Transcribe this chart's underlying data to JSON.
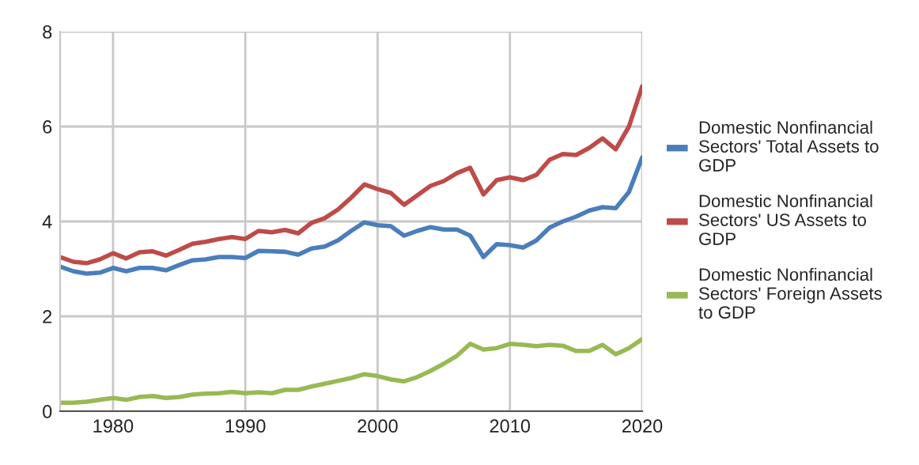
{
  "chart_data": {
    "type": "line",
    "x": [
      1976,
      1977,
      1978,
      1979,
      1980,
      1981,
      1982,
      1983,
      1984,
      1985,
      1986,
      1987,
      1988,
      1989,
      1990,
      1991,
      1992,
      1993,
      1994,
      1995,
      1996,
      1997,
      1998,
      1999,
      2000,
      2001,
      2002,
      2003,
      2004,
      2005,
      2006,
      2007,
      2008,
      2009,
      2010,
      2011,
      2012,
      2013,
      2014,
      2015,
      2016,
      2017,
      2018,
      2019,
      2020
    ],
    "series": [
      {
        "name": "Domestic Nonfinancial Sectors' Total Assets to GDP",
        "color": "#4a7ebb",
        "values": [
          3.05,
          2.95,
          2.9,
          2.92,
          3.02,
          2.95,
          3.02,
          3.02,
          2.97,
          3.08,
          3.18,
          3.2,
          3.25,
          3.25,
          3.23,
          3.38,
          3.37,
          3.36,
          3.3,
          3.43,
          3.47,
          3.6,
          3.8,
          3.98,
          3.92,
          3.9,
          3.7,
          3.8,
          3.88,
          3.83,
          3.83,
          3.7,
          3.25,
          3.52,
          3.5,
          3.45,
          3.6,
          3.87,
          4.0,
          4.1,
          4.23,
          4.3,
          4.28,
          4.62,
          5.35
        ]
      },
      {
        "name": "Domestic Nonfinancial Sectors' US Assets to GDP",
        "color": "#be4b48",
        "values": [
          3.25,
          3.15,
          3.12,
          3.2,
          3.33,
          3.22,
          3.35,
          3.37,
          3.28,
          3.4,
          3.53,
          3.57,
          3.63,
          3.67,
          3.63,
          3.8,
          3.77,
          3.82,
          3.75,
          3.97,
          4.07,
          4.25,
          4.5,
          4.78,
          4.68,
          4.6,
          4.35,
          4.55,
          4.75,
          4.85,
          5.02,
          5.13,
          4.57,
          4.87,
          4.93,
          4.87,
          4.98,
          5.3,
          5.42,
          5.4,
          5.55,
          5.75,
          5.52,
          6.0,
          6.85
        ]
      },
      {
        "name": "Domestic Nonfinancial Sectors' Foreign Assets to GDP",
        "color": "#98b954",
        "values": [
          0.18,
          0.18,
          0.2,
          0.24,
          0.28,
          0.24,
          0.3,
          0.32,
          0.28,
          0.3,
          0.35,
          0.37,
          0.38,
          0.41,
          0.38,
          0.4,
          0.38,
          0.45,
          0.45,
          0.52,
          0.58,
          0.64,
          0.7,
          0.78,
          0.74,
          0.67,
          0.63,
          0.72,
          0.85,
          1.0,
          1.17,
          1.42,
          1.3,
          1.33,
          1.42,
          1.4,
          1.37,
          1.4,
          1.38,
          1.27,
          1.27,
          1.4,
          1.2,
          1.33,
          1.52
        ]
      }
    ],
    "xlim": [
      1976,
      2020
    ],
    "xticks": [
      1980,
      1990,
      2000,
      2010,
      2020
    ],
    "ylim": [
      0,
      8
    ],
    "yticks": [
      0,
      2,
      4,
      6,
      8
    ],
    "grid": true,
    "legend": "right",
    "marker": "none",
    "line_style": "solid"
  }
}
